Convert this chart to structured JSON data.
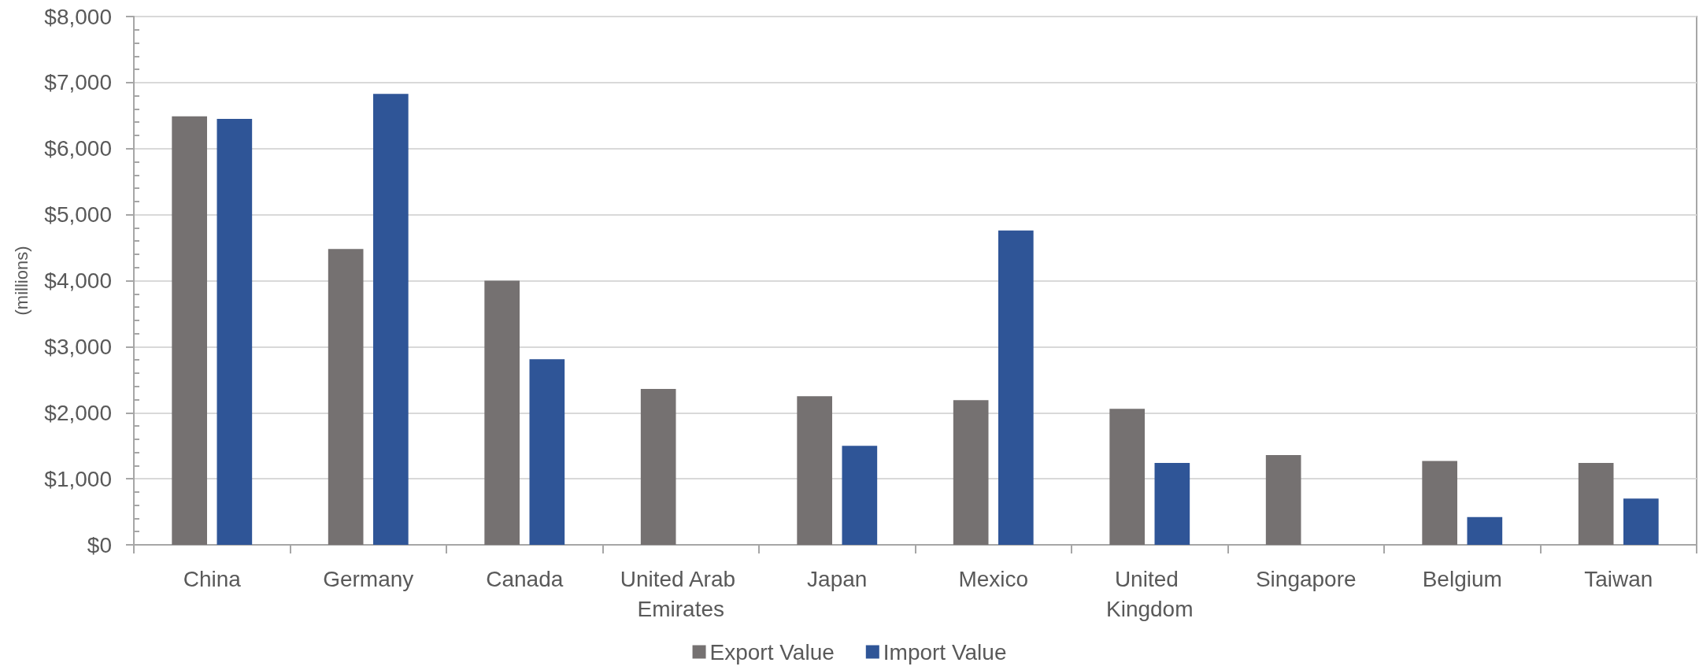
{
  "chart_data": {
    "type": "bar",
    "ylabel": "(millions)",
    "categories": [
      "China",
      "Germany",
      "Canada",
      "United Arab Emirates",
      "Japan",
      "Mexico",
      "United Kingdom",
      "Singapore",
      "Belgium",
      "Taiwan"
    ],
    "series": [
      {
        "name": "Export Value",
        "color": "#757171",
        "values": [
          6490,
          4480,
          4000,
          2360,
          2250,
          2190,
          2060,
          1360,
          1270,
          1240
        ]
      },
      {
        "name": "Import Value",
        "color": "#2f5597",
        "values": [
          6450,
          6830,
          2810,
          null,
          1500,
          4760,
          1240,
          null,
          420,
          700
        ]
      }
    ],
    "ylim": [
      0,
      8000
    ],
    "yticks": [
      {
        "value": 0,
        "label": "$0"
      },
      {
        "value": 200,
        "label": null
      },
      {
        "value": 400,
        "label": null
      },
      {
        "value": 600,
        "label": null
      },
      {
        "value": 800,
        "label": null
      },
      {
        "value": 1000,
        "label": "$1,000"
      },
      {
        "value": 1200,
        "label": null
      },
      {
        "value": 1400,
        "label": null
      },
      {
        "value": 1600,
        "label": null
      },
      {
        "value": 1800,
        "label": null
      },
      {
        "value": 2000,
        "label": "$2,000"
      },
      {
        "value": 2200,
        "label": null
      },
      {
        "value": 2400,
        "label": null
      },
      {
        "value": 2600,
        "label": null
      },
      {
        "value": 2800,
        "label": null
      },
      {
        "value": 3000,
        "label": "$3,000"
      },
      {
        "value": 3200,
        "label": null
      },
      {
        "value": 3400,
        "label": null
      },
      {
        "value": 3600,
        "label": null
      },
      {
        "value": 3800,
        "label": null
      },
      {
        "value": 4000,
        "label": "$4,000"
      },
      {
        "value": 4200,
        "label": null
      },
      {
        "value": 4400,
        "label": null
      },
      {
        "value": 4600,
        "label": null
      },
      {
        "value": 4800,
        "label": null
      },
      {
        "value": 5000,
        "label": "$5,000"
      },
      {
        "value": 5200,
        "label": null
      },
      {
        "value": 5400,
        "label": null
      },
      {
        "value": 5600,
        "label": null
      },
      {
        "value": 5800,
        "label": null
      },
      {
        "value": 6000,
        "label": "$6,000"
      },
      {
        "value": 6200,
        "label": null
      },
      {
        "value": 6400,
        "label": null
      },
      {
        "value": 6600,
        "label": null
      },
      {
        "value": 6800,
        "label": null
      },
      {
        "value": 7000,
        "label": "$7,000"
      },
      {
        "value": 7200,
        "label": null
      },
      {
        "value": 7400,
        "label": null
      },
      {
        "value": 7600,
        "label": null
      },
      {
        "value": 7800,
        "label": null
      },
      {
        "value": 8000,
        "label": "$8,000"
      }
    ],
    "grid": "y",
    "legend": "bottom"
  }
}
